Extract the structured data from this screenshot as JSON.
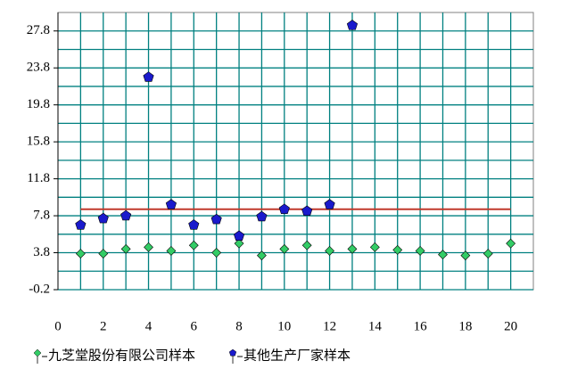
{
  "chart_data": {
    "type": "scatter",
    "xlim": [
      0,
      21
    ],
    "xticks": [
      0,
      2,
      4,
      6,
      8,
      10,
      12,
      14,
      16,
      18,
      20
    ],
    "ylim": [
      -0.2,
      29.8
    ],
    "yticks": [
      -0.2,
      3.8,
      7.8,
      11.8,
      15.8,
      19.8,
      23.8,
      27.8
    ],
    "grid": true,
    "legend": "bottom",
    "reference_line": {
      "value": 8.5,
      "x": [
        1,
        20
      ],
      "color": "#c0392b"
    },
    "series": [
      {
        "name": "九芝堂股份有限公司样本",
        "color": "#33cc66",
        "marker": "diamond",
        "x": [
          1,
          2,
          3,
          4,
          5,
          6,
          7,
          8,
          9,
          10,
          11,
          12,
          13,
          14,
          15,
          16,
          17,
          18,
          19,
          20
        ],
        "values": [
          3.7,
          3.7,
          4.2,
          4.4,
          4.0,
          4.6,
          3.8,
          4.8,
          3.5,
          4.2,
          4.6,
          4.0,
          4.2,
          4.4,
          4.1,
          4.0,
          3.6,
          3.5,
          3.7,
          4.8
        ]
      },
      {
        "name": "其他生产厂家样本",
        "color": "#1a1acc",
        "marker": "pentagon",
        "x": [
          1,
          2,
          3,
          4,
          5,
          6,
          7,
          8,
          9,
          10,
          11,
          12,
          13
        ],
        "values": [
          6.8,
          7.5,
          7.8,
          22.8,
          9.0,
          6.8,
          7.4,
          5.6,
          7.7,
          8.5,
          8.3,
          9.0,
          28.4
        ]
      }
    ]
  }
}
